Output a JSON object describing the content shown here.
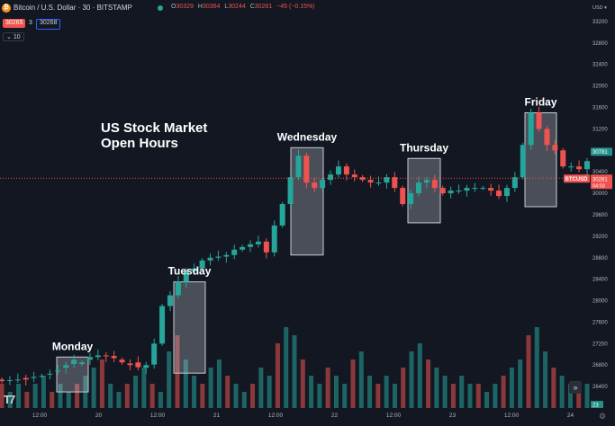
{
  "header": {
    "coin_icon": "bitcoin-icon",
    "title": "Bitcoin / U.S. Dollar · 30 · BITSTAMP",
    "ohlc": [
      {
        "k": "O",
        "v": "30329"
      },
      {
        "k": "H",
        "v": "30364"
      },
      {
        "k": "L",
        "v": "30244"
      },
      {
        "k": "C",
        "v": "30281"
      }
    ],
    "change": "−45 (−0.15%)",
    "bid": "30265",
    "spread": "3",
    "ask": "30268",
    "indicator": "10"
  },
  "colors": {
    "background": "#131722",
    "up": "#26a69a",
    "down": "#ef5350",
    "text": "#d1d4dc",
    "axis_text": "#b2b5be",
    "box_fill": "rgba(200,205,215,0.30)",
    "box_stroke": "#c8ccd4",
    "price_line": "#ef5350"
  },
  "chart_data": {
    "type": "candlestick",
    "title": "",
    "currency": "USD",
    "y_ticks": [
      26400,
      26800,
      27200,
      27600,
      28000,
      28400,
      28800,
      29200,
      29600,
      30000,
      30400,
      30800,
      31200,
      31600,
      32000,
      32400,
      32800,
      33200
    ],
    "ylim": [
      26000,
      33400
    ],
    "x_ticks": [
      "12:00",
      "20",
      "12:00",
      "21",
      "12:00",
      "22",
      "12:00",
      "23",
      "12:00",
      "24"
    ],
    "last_price": {
      "symbol": "BTCUSD",
      "price": "30281",
      "countdown": "04:03"
    },
    "other_price_label": "30781",
    "volume_label": "23",
    "annotation": "US Stock Market\nOpen Hours",
    "sessions": [
      {
        "label": "Monday",
        "y_low": 26300,
        "y_high": 26950
      },
      {
        "label": "Tuesday",
        "y_low": 26650,
        "y_high": 28350
      },
      {
        "label": "Wednesday",
        "y_low": 28850,
        "y_high": 30850
      },
      {
        "label": "Thursday",
        "y_low": 29450,
        "y_high": 30650
      },
      {
        "label": "Friday",
        "y_low": 29750,
        "y_high": 31500
      }
    ],
    "price_path": [
      [
        26530,
        26500
      ],
      [
        26520,
        26520
      ],
      [
        26530,
        26530
      ],
      [
        26560,
        26530
      ],
      [
        26560,
        26580
      ],
      [
        26600,
        26600
      ],
      [
        26630,
        26640
      ],
      [
        26680,
        26700
      ],
      [
        26750,
        26800
      ],
      [
        26820,
        26900
      ],
      [
        26820,
        26850
      ],
      [
        26900,
        26950
      ],
      [
        26950,
        26980
      ],
      [
        26980,
        26970
      ],
      [
        26970,
        26930
      ],
      [
        26900,
        26850
      ],
      [
        26830,
        26800
      ],
      [
        26850,
        26760
      ],
      [
        26750,
        26800
      ],
      [
        26810,
        27200
      ],
      [
        27200,
        27900
      ],
      [
        27900,
        28100
      ],
      [
        28100,
        28350
      ],
      [
        28350,
        28550
      ],
      [
        28550,
        28600
      ],
      [
        28600,
        28750
      ],
      [
        28750,
        28800
      ],
      [
        28800,
        28820
      ],
      [
        28820,
        28850
      ],
      [
        28850,
        28950
      ],
      [
        28950,
        29000
      ],
      [
        29000,
        29050
      ],
      [
        29050,
        29100
      ],
      [
        29100,
        28900
      ],
      [
        28900,
        29400
      ],
      [
        29400,
        29800
      ],
      [
        29800,
        30300
      ],
      [
        30300,
        30700
      ],
      [
        30700,
        30200
      ],
      [
        30200,
        30100
      ],
      [
        30100,
        30250
      ],
      [
        30250,
        30350
      ],
      [
        30350,
        30500
      ],
      [
        30500,
        30350
      ],
      [
        30350,
        30300
      ],
      [
        30300,
        30250
      ],
      [
        30250,
        30200
      ],
      [
        30200,
        30200
      ],
      [
        30200,
        30300
      ],
      [
        30300,
        30100
      ],
      [
        30100,
        29800
      ],
      [
        29800,
        30000
      ],
      [
        30000,
        30200
      ],
      [
        30200,
        30250
      ],
      [
        30250,
        30100
      ],
      [
        30100,
        30000
      ],
      [
        30000,
        30050
      ],
      [
        30050,
        30050
      ],
      [
        30050,
        30100
      ],
      [
        30100,
        30100
      ],
      [
        30100,
        30100
      ],
      [
        30100,
        30050
      ],
      [
        30050,
        29950
      ],
      [
        29950,
        30100
      ],
      [
        30100,
        30300
      ],
      [
        30300,
        30900
      ],
      [
        30900,
        31500
      ],
      [
        31500,
        31200
      ],
      [
        31200,
        30900
      ],
      [
        30900,
        30800
      ],
      [
        30800,
        30500
      ],
      [
        30500,
        30500
      ],
      [
        30500,
        30450
      ],
      [
        30450,
        30600
      ]
    ],
    "volume_profile": [
      3,
      2,
      3,
      2,
      3,
      4,
      2,
      3,
      2,
      3,
      4,
      5,
      6,
      3,
      2,
      3,
      4,
      5,
      3,
      2,
      7,
      9,
      6,
      4,
      3,
      5,
      6,
      4,
      3,
      2,
      3,
      5,
      4,
      8,
      10,
      9,
      6,
      4,
      3,
      5,
      4,
      3,
      6,
      7,
      4,
      3,
      4,
      3,
      5,
      7,
      8,
      6,
      5,
      4,
      3,
      4,
      3,
      3,
      2,
      3,
      4,
      5,
      6,
      9,
      10,
      7,
      5,
      4,
      3,
      2,
      3
    ]
  }
}
